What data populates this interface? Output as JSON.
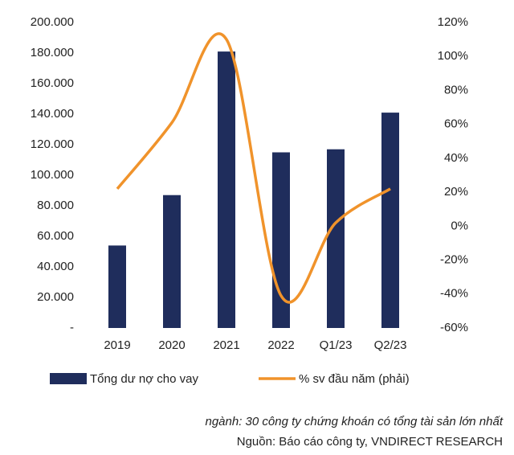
{
  "chart_data": {
    "type": "bar-line",
    "categories": [
      "2019",
      "2020",
      "2021",
      "2022",
      "Q1/23",
      "Q2/23"
    ],
    "series": [
      {
        "name": "Tổng dư nợ cho vay",
        "color": "#1f2d5c",
        "type": "bar",
        "values": [
          54000,
          87000,
          181000,
          115000,
          117000,
          141000
        ]
      },
      {
        "name": "% sv đầu năm (phải)",
        "color": "#f0932b",
        "type": "line",
        "axis": "y2",
        "values": [
          22,
          61,
          110,
          -41,
          2,
          22
        ]
      }
    ],
    "ylim": [
      0,
      200000
    ],
    "yticks": [
      {
        "value": 0,
        "label": "-"
      },
      {
        "value": 20000,
        "label": "20.000"
      },
      {
        "value": 40000,
        "label": "40.000"
      },
      {
        "value": 60000,
        "label": "60.000"
      },
      {
        "value": 80000,
        "label": "80.000"
      },
      {
        "value": 100000,
        "label": "100.000"
      },
      {
        "value": 120000,
        "label": "120.000"
      },
      {
        "value": 140000,
        "label": "140.000"
      },
      {
        "value": 160000,
        "label": "160.000"
      },
      {
        "value": 180000,
        "label": "180.000"
      },
      {
        "value": 200000,
        "label": "200.000"
      }
    ],
    "y2lim": [
      -60,
      120
    ],
    "y2ticks": [
      {
        "value": -60,
        "label": "-60%"
      },
      {
        "value": -40,
        "label": "-40%"
      },
      {
        "value": -20,
        "label": "-20%"
      },
      {
        "value": 0,
        "label": "0%"
      },
      {
        "value": 20,
        "label": "20%"
      },
      {
        "value": 40,
        "label": "40%"
      },
      {
        "value": 60,
        "label": "60%"
      },
      {
        "value": 80,
        "label": "80%"
      },
      {
        "value": 100,
        "label": "100%"
      },
      {
        "value": 120,
        "label": "120%"
      }
    ],
    "notes": [
      "ngành: 30 công ty chứng khoán có tổng tài sản lớn nhất",
      "Nguồn: Báo cáo công ty, VNDIRECT RESEARCH"
    ]
  }
}
